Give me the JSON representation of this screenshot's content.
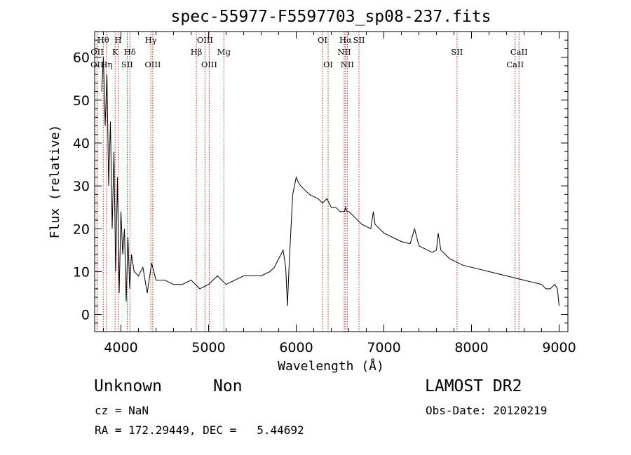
{
  "chart_data": {
    "type": "line",
    "title": "spec-55977-F5597703_sp08-237.fits",
    "xlabel": "Wavelength (Å)",
    "ylabel": "Flux (relative)",
    "xlim": [
      3700,
      9100
    ],
    "ylim": [
      -4,
      66
    ],
    "xticks": [
      4000,
      5000,
      6000,
      7000,
      8000,
      9000
    ],
    "yticks": [
      0,
      10,
      20,
      30,
      40,
      50,
      60
    ],
    "series": [
      {
        "x": [
          3780,
          3800,
          3820,
          3840,
          3860,
          3880,
          3900,
          3920,
          3940,
          3960,
          3980,
          4000,
          4020,
          4040,
          4060,
          4080,
          4100,
          4120,
          4150,
          4200,
          4250,
          4300,
          4350,
          4400,
          4500,
          4600,
          4700,
          4800,
          4900,
          5000,
          5100,
          5200,
          5300,
          5400,
          5500,
          5600,
          5700,
          5750,
          5800,
          5850,
          5880,
          5900,
          5920,
          5940,
          5960,
          5980,
          6000,
          6020,
          6050,
          6100,
          6150,
          6200,
          6250,
          6300,
          6350,
          6400,
          6450,
          6500,
          6550,
          6563,
          6580,
          6600,
          6650,
          6700,
          6750,
          6800,
          6850,
          6880,
          6900,
          6950,
          7000,
          7100,
          7200,
          7300,
          7350,
          7400,
          7450,
          7500,
          7550,
          7600,
          7620,
          7650,
          7700,
          7750,
          7800,
          7900,
          8000,
          8100,
          8200,
          8300,
          8400,
          8500,
          8600,
          8700,
          8800,
          8850,
          8900,
          8950,
          8980,
          9000
        ],
        "y": [
          52,
          60,
          44,
          56,
          30,
          45,
          20,
          38,
          10,
          32,
          5,
          24,
          14,
          20,
          3,
          18,
          6,
          14,
          10,
          9,
          11,
          5,
          12,
          8,
          8,
          7,
          7,
          8,
          6,
          7,
          9,
          7,
          8,
          9,
          9,
          9,
          10,
          11,
          13,
          15,
          11,
          2,
          12,
          20,
          28,
          30,
          32,
          31,
          30,
          29,
          28,
          27.5,
          27,
          26,
          27,
          25,
          25,
          24,
          24,
          25,
          24,
          24,
          23,
          22,
          21,
          20.5,
          20,
          24,
          21,
          20,
          19,
          18,
          17,
          16.5,
          20,
          16,
          15.5,
          15,
          14.5,
          15,
          19,
          15,
          14,
          13,
          12.5,
          11.5,
          11,
          10.5,
          10,
          9.5,
          9,
          8.5,
          8,
          7.5,
          7,
          6,
          6,
          7,
          6,
          2
        ]
      }
    ],
    "lines": [
      {
        "wave": 3798,
        "label": "Hθ",
        "row": 1
      },
      {
        "wave": 3728,
        "label": "OII",
        "row": 2
      },
      {
        "wave": 3835,
        "label": "Hη",
        "row": 3
      },
      {
        "wave": 3727,
        "label": "OII",
        "row": 3
      },
      {
        "wave": 3968,
        "label": "H",
        "row": 1
      },
      {
        "wave": 3934,
        "label": "K",
        "row": 2
      },
      {
        "wave": 4102,
        "label": "Hδ",
        "row": 2
      },
      {
        "wave": 4072,
        "label": "SII",
        "row": 3
      },
      {
        "wave": 4341,
        "label": "Hγ",
        "row": 1
      },
      {
        "wave": 4363,
        "label": "OIII",
        "row": 3
      },
      {
        "wave": 4959,
        "label": "OIII",
        "row": 1
      },
      {
        "wave": 4861,
        "label": "Hβ",
        "row": 2
      },
      {
        "wave": 5007,
        "label": "OIII",
        "row": 3
      },
      {
        "wave": 5175,
        "label": "Mg",
        "row": 2
      },
      {
        "wave": 6300,
        "label": "OI",
        "row": 1
      },
      {
        "wave": 6364,
        "label": "OI",
        "row": 3
      },
      {
        "wave": 6563,
        "label": "Hα",
        "row": 1
      },
      {
        "wave": 6716,
        "label": "SII",
        "row": 1
      },
      {
        "wave": 6548,
        "label": "NII",
        "row": 2
      },
      {
        "wave": 6583,
        "label": "NII",
        "row": 3
      },
      {
        "wave": 7835,
        "label": "SII",
        "row": 2
      },
      {
        "wave": 8542,
        "label": "CaII",
        "row": 2
      },
      {
        "wave": 8498,
        "label": "CaII",
        "row": 3
      }
    ]
  },
  "info": {
    "object_class": "Unknown",
    "subclass": "Non",
    "cz": "cz = NaN",
    "coords": "RA = 172.29449, DEC =   5.44692",
    "survey": "LAMOST DR2",
    "obs_date": "Obs-Date: 20120219"
  }
}
